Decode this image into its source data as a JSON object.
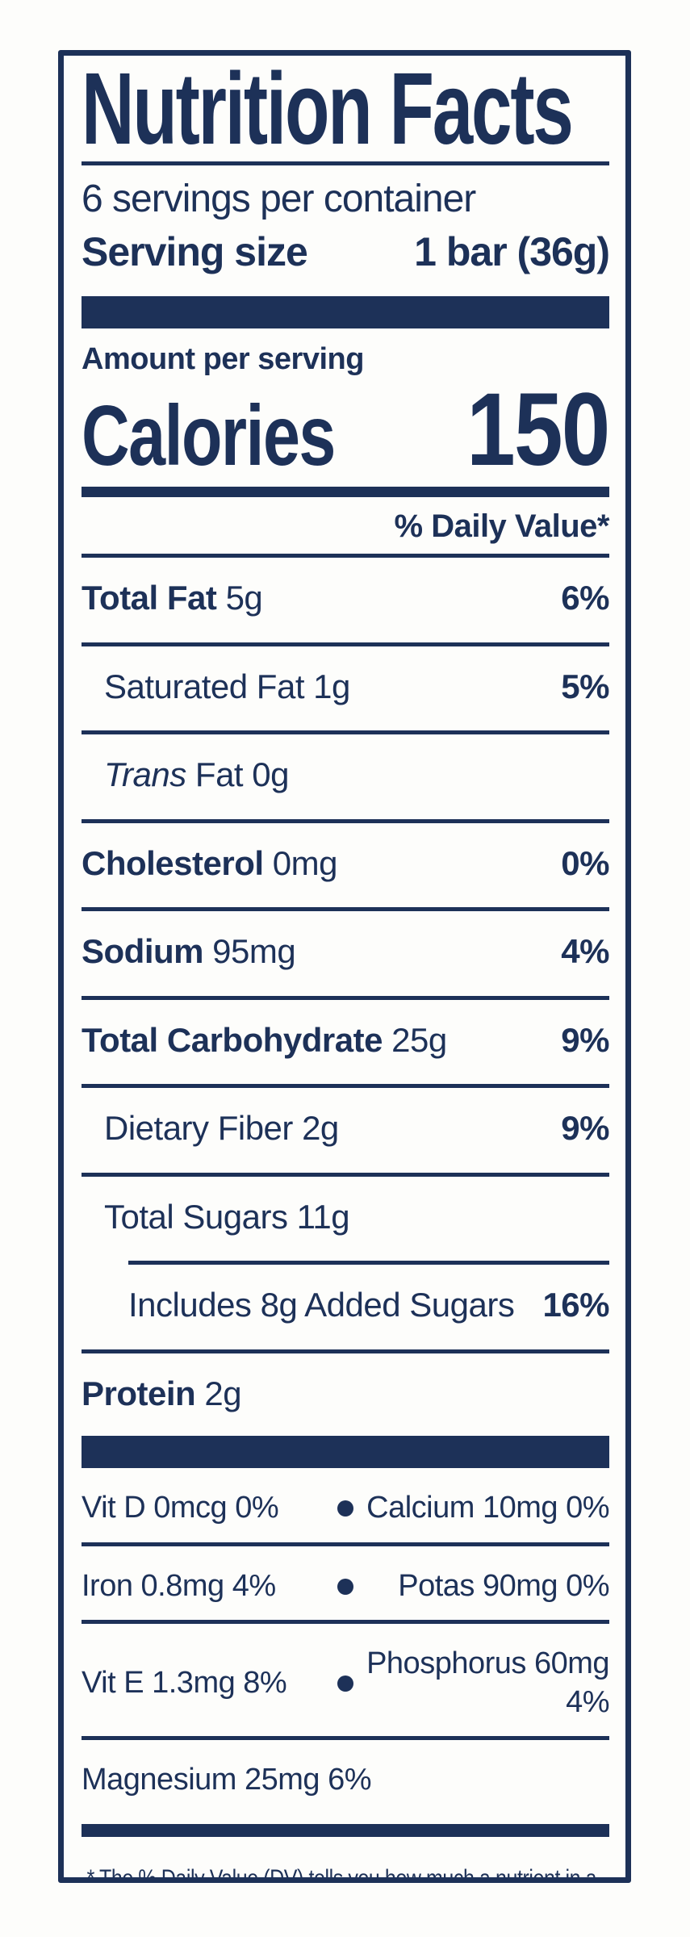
{
  "label": {
    "title": "Nutrition Facts",
    "servings_per_container": "6 servings per container",
    "serving_size": {
      "label": "Serving size",
      "value": "1 bar (36g)"
    },
    "amount_per_serving": "Amount per serving",
    "calories": {
      "label": "Calories",
      "value": "150"
    },
    "daily_value_header": "% Daily Value*",
    "nutrients": [
      {
        "name": "Total Fat",
        "amount": "5g",
        "dv": "6%"
      },
      {
        "name": "Saturated Fat",
        "amount": "1g",
        "dv": "5%"
      },
      {
        "name_italic": "Trans",
        "name": "Fat",
        "amount": "0g",
        "dv": ""
      },
      {
        "name": "Cholesterol",
        "amount": "0mg",
        "dv": "0%"
      },
      {
        "name": "Sodium",
        "amount": "95mg",
        "dv": "4%"
      },
      {
        "name": "Total Carbohydrate",
        "amount": "25g",
        "dv": "9%"
      },
      {
        "name": "Dietary Fiber",
        "amount": "2g",
        "dv": "9%"
      },
      {
        "name": "Total Sugars",
        "amount": "11g",
        "dv": ""
      },
      {
        "name": "Includes 8g Added Sugars",
        "amount": "",
        "dv": "16%"
      },
      {
        "name": "Protein",
        "amount": "2g",
        "dv": ""
      }
    ],
    "micros": [
      {
        "left": "Vit D 0mcg 0%",
        "right": "Calcium 10mg 0%"
      },
      {
        "left": "Iron 0.8mg 4%",
        "right": "Potas 90mg 0%"
      },
      {
        "left": "Vit E 1.3mg 8%",
        "right": "Phosphorus 60mg 4%"
      },
      {
        "left": "Magnesium 25mg 6%",
        "right": ""
      }
    ],
    "footnote": {
      "marker": "*",
      "text": "The % Daily Value (DV) tells you how much a nutrient in a serving of food contributes to a daily diet. 2,000 calories a day is used for general nutrition advice."
    },
    "colors": {
      "navy": "#1d3158",
      "background": "#fdfdfb"
    }
  }
}
